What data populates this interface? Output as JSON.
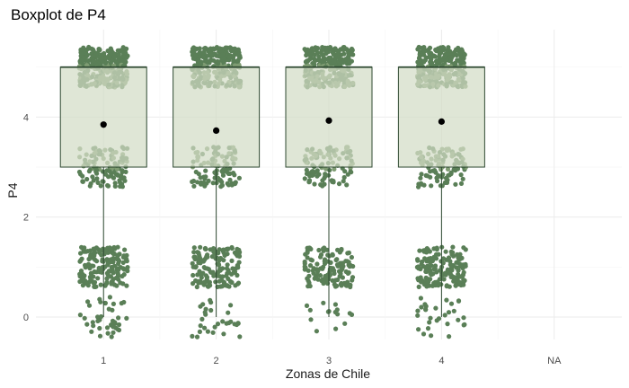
{
  "chart_data": {
    "type": "boxplot",
    "title": "Boxplot de P4",
    "xlabel": "Zonas de Chile",
    "ylabel": "P4",
    "categories": [
      "1",
      "2",
      "3",
      "4",
      "NA"
    ],
    "ylim": [
      -0.45,
      5.75
    ],
    "y_ticks": [
      0,
      2,
      4
    ],
    "grid": true,
    "legend": "none",
    "colors": {
      "box_fill": "#d1dbc4",
      "box_stroke": "#2f4a32",
      "points": "#5a7f57",
      "points_light": "#7f9c73",
      "mean_marker": "#000000"
    },
    "boxes": [
      {
        "category": "1",
        "min": 0,
        "q1": 3,
        "median": 5,
        "q3": 5,
        "max": 5,
        "mean": 3.85
      },
      {
        "category": "2",
        "min": 0,
        "q1": 3,
        "median": 5,
        "q3": 5,
        "max": 5,
        "mean": 3.73
      },
      {
        "category": "3",
        "min": 0,
        "q1": 3,
        "median": 5,
        "q3": 5,
        "max": 5,
        "mean": 3.93
      },
      {
        "category": "4",
        "min": 0,
        "q1": 3,
        "median": 5,
        "q3": 5,
        "max": 5,
        "mean": 3.91
      }
    ],
    "jitter_counts": [
      {
        "category": "1",
        "counts": {
          "0": 40,
          "1": 170,
          "3": 110,
          "5": 300
        }
      },
      {
        "category": "2",
        "counts": {
          "0": 30,
          "1": 150,
          "3": 100,
          "5": 280
        }
      },
      {
        "category": "3",
        "counts": {
          "0": 15,
          "1": 130,
          "3": 95,
          "5": 270
        }
      },
      {
        "category": "4",
        "counts": {
          "0": 30,
          "1": 160,
          "3": 105,
          "5": 285
        }
      }
    ]
  }
}
